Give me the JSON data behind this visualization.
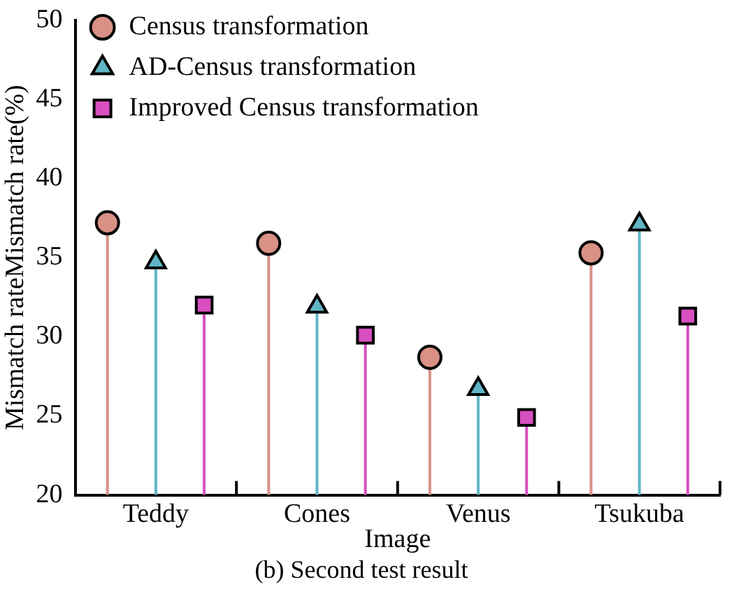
{
  "chart_data": {
    "type": "lollipop",
    "title": "(b) Second test result",
    "xlabel": "Image",
    "ylabel": "Mismatch rateMismatch rate(%)",
    "categories": [
      "Teddy",
      "Cones",
      "Venus",
      "Tsukuba"
    ],
    "series": [
      {
        "name": "Census transformation",
        "color": "#d99185",
        "marker": "circle",
        "values": [
          37.2,
          35.9,
          28.7,
          35.3
        ]
      },
      {
        "name": "AD-Census transformation",
        "color": "#5fb5c5",
        "marker": "triangle",
        "values": [
          34.7,
          31.9,
          26.7,
          37.1
        ]
      },
      {
        "name": "Improved Census transformation",
        "color": "#d84fbf",
        "marker": "square",
        "values": [
          32.0,
          30.1,
          24.9,
          31.3
        ]
      }
    ],
    "ylim": [
      20,
      50
    ],
    "yticks": [
      20,
      25,
      30,
      35,
      40,
      45,
      50
    ],
    "grid": false,
    "legend": "top"
  }
}
